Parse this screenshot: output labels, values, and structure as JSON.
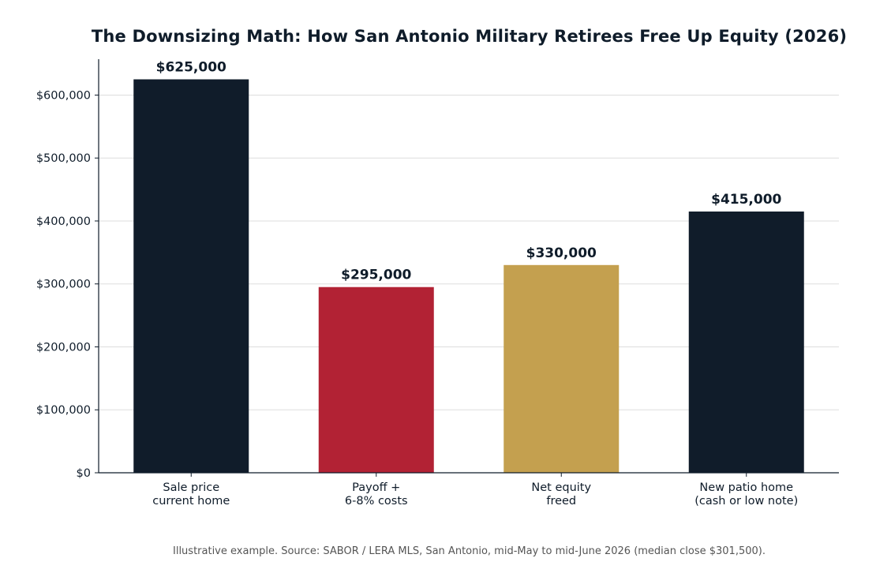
{
  "chart_data": {
    "type": "bar",
    "title": "The Downsizing Math: How San Antonio Military Retirees Free Up Equity (2026)",
    "xlabel": "",
    "ylabel": "",
    "categories": [
      [
        "Sale price",
        "current home"
      ],
      [
        "Payoff +",
        "6-8% costs"
      ],
      [
        "Net equity",
        "freed"
      ],
      [
        "New patio home",
        "(cash or low note)"
      ]
    ],
    "values": [
      625000,
      295000,
      330000,
      415000
    ],
    "value_labels": [
      "$625,000",
      "$295,000",
      "$330,000",
      "$415,000"
    ],
    "bar_colors": [
      "#101c2a",
      "#b22234",
      "#c4a04f",
      "#101c2a"
    ],
    "ylim": [
      0,
      657000
    ],
    "yticks": [
      0,
      100000,
      200000,
      300000,
      400000,
      500000,
      600000
    ],
    "ytick_labels": [
      "$0",
      "$100,000",
      "$200,000",
      "$300,000",
      "$400,000",
      "$500,000",
      "$600,000"
    ],
    "grid": "horizontal",
    "source": "Illustrative example. Source: SABOR / LERA MLS, San Antonio, mid-May to mid-June 2026 (median close $301,500)."
  }
}
